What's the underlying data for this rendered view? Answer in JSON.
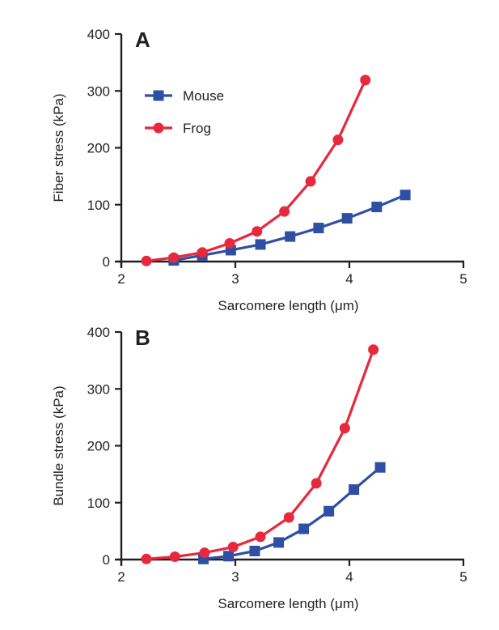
{
  "colors": {
    "mouse": "#2e4fa3",
    "frog": "#e8283c",
    "axis": "#231f20"
  },
  "chart_data": [
    {
      "type": "line",
      "panel_label": "A",
      "xlabel": "Sarcomere length (μm)",
      "ylabel": "Fiber stress (kPa)",
      "xlim": [
        2,
        5
      ],
      "ylim": [
        0,
        400
      ],
      "x_ticks": [
        "2",
        "3",
        "4",
        "5"
      ],
      "y_ticks": [
        "0",
        "100",
        "200",
        "300",
        "400"
      ],
      "legend": {
        "position": "top-left",
        "items": [
          "Mouse",
          "Frog"
        ]
      },
      "series": [
        {
          "name": "Mouse",
          "marker": "square",
          "color": "#2e4fa3",
          "points": [
            [
              2.46,
              2
            ],
            [
              2.71,
              11
            ],
            [
              2.96,
              20
            ],
            [
              3.22,
              30
            ],
            [
              3.48,
              44
            ],
            [
              3.73,
              59
            ],
            [
              3.98,
              76
            ],
            [
              4.24,
              96
            ],
            [
              4.49,
              117
            ]
          ]
        },
        {
          "name": "Frog",
          "marker": "circle",
          "color": "#e8283c",
          "points": [
            [
              2.22,
              1
            ],
            [
              2.46,
              7
            ],
            [
              2.71,
              16
            ],
            [
              2.95,
              32
            ],
            [
              3.19,
              53
            ],
            [
              3.43,
              88
            ],
            [
              3.66,
              141
            ],
            [
              3.9,
              214
            ],
            [
              4.14,
              319
            ]
          ]
        }
      ]
    },
    {
      "type": "line",
      "panel_label": "B",
      "xlabel": "Sarcomere length (μm)",
      "ylabel": "Bundle stress (kPa)",
      "xlim": [
        2,
        5
      ],
      "ylim": [
        0,
        400
      ],
      "x_ticks": [
        "2",
        "3",
        "4",
        "5"
      ],
      "y_ticks": [
        "0",
        "100",
        "200",
        "300",
        "400"
      ],
      "series": [
        {
          "name": "Mouse",
          "marker": "square",
          "color": "#2e4fa3",
          "points": [
            [
              2.72,
              1
            ],
            [
              2.94,
              6
            ],
            [
              3.17,
              15
            ],
            [
              3.38,
              30
            ],
            [
              3.6,
              54
            ],
            [
              3.82,
              85
            ],
            [
              4.04,
              123
            ],
            [
              4.27,
              162
            ]
          ]
        },
        {
          "name": "Frog",
          "marker": "circle",
          "color": "#e8283c",
          "points": [
            [
              2.22,
              1
            ],
            [
              2.47,
              5
            ],
            [
              2.73,
              12
            ],
            [
              2.98,
              22
            ],
            [
              3.22,
              40
            ],
            [
              3.47,
              74
            ],
            [
              3.71,
              134
            ],
            [
              3.96,
              231
            ],
            [
              4.21,
              369
            ]
          ]
        }
      ]
    }
  ]
}
